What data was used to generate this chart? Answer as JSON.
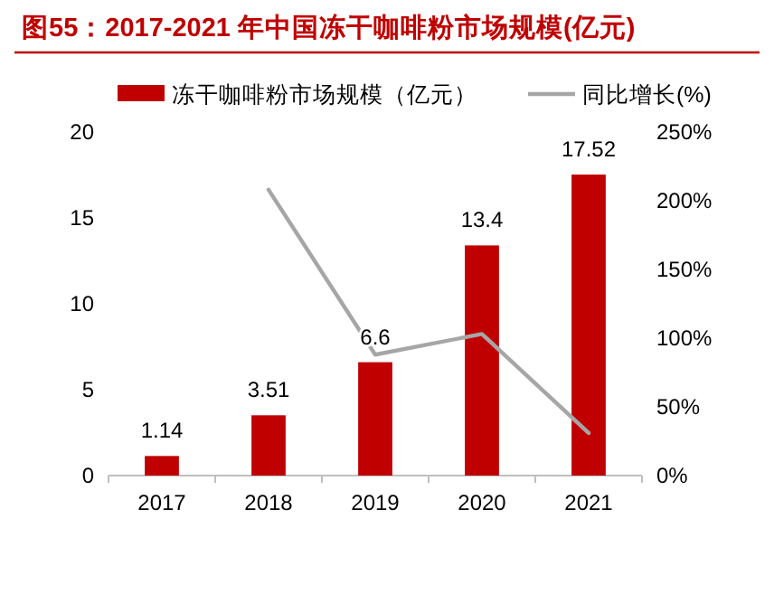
{
  "chart_data": {
    "type": "bar",
    "title": "图55：2017-2021 年中国冻干咖啡粉市场规模(亿元)",
    "categories": [
      "2017",
      "2018",
      "2019",
      "2020",
      "2021"
    ],
    "series": [
      {
        "name": "冻干咖啡粉市场规模（亿元）",
        "color": "#c00000",
        "values": [
          1.14,
          3.51,
          6.6,
          13.4,
          17.52
        ],
        "value_labels": [
          "1.14",
          "3.51",
          "6.6",
          "13.4",
          "17.52"
        ]
      },
      {
        "name": "同比增长(%)",
        "type": "line",
        "axis": "y2",
        "color": "#a6a6a6",
        "values": [
          null,
          208,
          88,
          103,
          31
        ]
      }
    ],
    "ylim": [
      0,
      20
    ],
    "yticks": [
      0,
      5,
      10,
      15,
      20
    ],
    "y2lim": [
      0,
      250
    ],
    "y2ticks": [
      {
        "value": 0,
        "label": "0%"
      },
      {
        "value": 50,
        "label": "50%"
      },
      {
        "value": 100,
        "label": "100%"
      },
      {
        "value": 150,
        "label": "150%"
      },
      {
        "value": 200,
        "label": "200%"
      },
      {
        "value": 250,
        "label": "250%"
      }
    ],
    "legend": "top"
  }
}
